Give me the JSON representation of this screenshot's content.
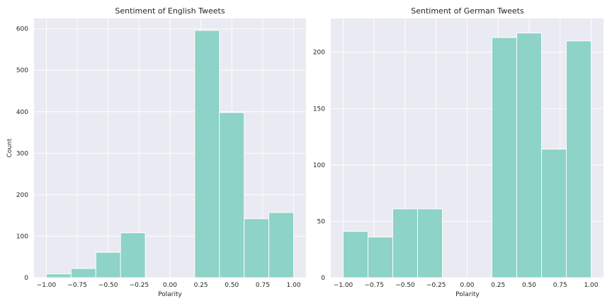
{
  "colors": {
    "bar": "#8dd3c7",
    "bar_edge": "#ffffff",
    "plot_bg": "#eaeaf2",
    "grid": "#ffffff"
  },
  "chart_data": [
    {
      "type": "bar",
      "title": "Sentiment of English Tweets",
      "xlabel": "Polarity",
      "ylabel": "Count",
      "xlim": [
        -1.1,
        1.1
      ],
      "ylim": [
        0,
        625
      ],
      "grid": true,
      "xticks": [
        -1.0,
        -0.75,
        -0.5,
        -0.25,
        0.0,
        0.25,
        0.5,
        0.75,
        1.0
      ],
      "xtick_labels": [
        "−1.00",
        "−0.75",
        "−0.50",
        "−0.25",
        "0.00",
        "0.25",
        "0.50",
        "0.75",
        "1.00"
      ],
      "yticks": [
        0,
        100,
        200,
        300,
        400,
        500,
        600
      ],
      "ytick_labels": [
        "0",
        "100",
        "200",
        "300",
        "400",
        "500",
        "600"
      ],
      "bin_edges": [
        -1.0,
        -0.8,
        -0.6,
        -0.4,
        -0.2,
        0.0,
        0.2,
        0.4,
        0.6,
        0.8,
        1.0
      ],
      "values": [
        9,
        22,
        61,
        108,
        0,
        0,
        596,
        398,
        142,
        157
      ]
    },
    {
      "type": "bar",
      "title": "Sentiment of German Tweets",
      "xlabel": "Polarity",
      "ylabel": "",
      "xlim": [
        -1.1,
        1.1
      ],
      "ylim": [
        0,
        230
      ],
      "grid": true,
      "xticks": [
        -1.0,
        -0.75,
        -0.5,
        -0.25,
        0.0,
        0.25,
        0.5,
        0.75,
        1.0
      ],
      "xtick_labels": [
        "−1.00",
        "−0.75",
        "−0.50",
        "−0.25",
        "0.00",
        "0.25",
        "0.50",
        "0.75",
        "1.00"
      ],
      "yticks": [
        0,
        50,
        100,
        150,
        200
      ],
      "ytick_labels": [
        "0",
        "50",
        "100",
        "150",
        "200"
      ],
      "bin_edges": [
        -1.0,
        -0.8,
        -0.6,
        -0.4,
        -0.2,
        0.0,
        0.2,
        0.4,
        0.6,
        0.8,
        1.0
      ],
      "values": [
        41,
        36,
        61,
        61,
        0,
        0,
        213,
        217,
        114,
        210
      ]
    }
  ]
}
